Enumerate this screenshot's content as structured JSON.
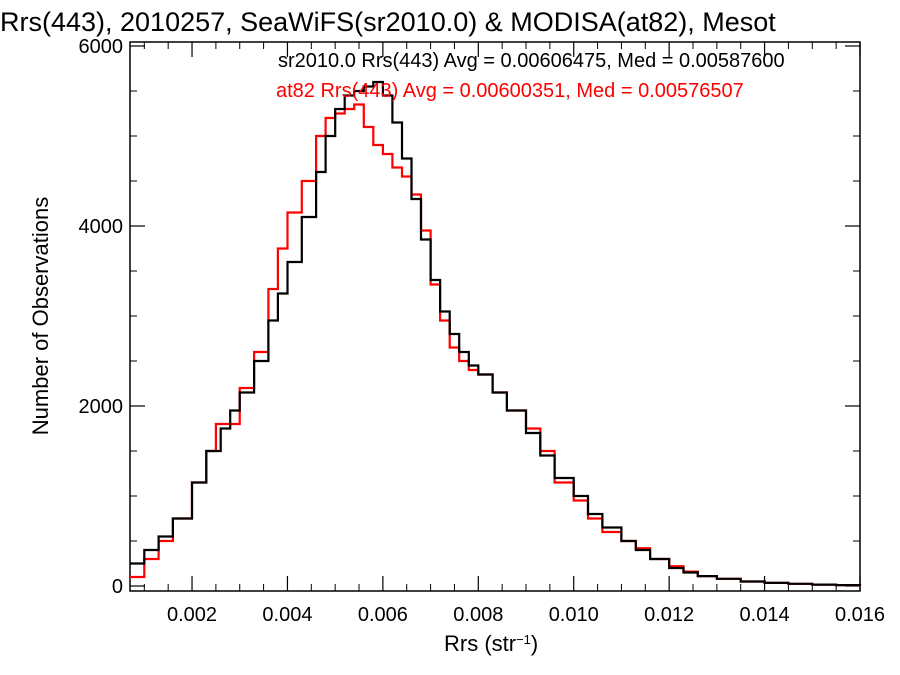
{
  "chart_data": {
    "type": "line",
    "title": "Rrs(443), 2010257, SeaWiFS(sr2010.0) & MODISA(at82), Mesot",
    "xlabel": "Rrs (str",
    "xlabel_sup": "−1",
    "xlabel_close": ")",
    "ylabel": "Number of Observations",
    "xlim": [
      0.0007,
      0.016
    ],
    "ylim": [
      0,
      6000
    ],
    "x_ticks": [
      0.002,
      0.004,
      0.006,
      0.008,
      0.01,
      0.012,
      0.014,
      0.016
    ],
    "x_tick_labels": [
      "0.002",
      "0.004",
      "0.006",
      "0.008",
      "0.010",
      "0.012",
      "0.014",
      "0.016"
    ],
    "y_ticks": [
      0,
      2000,
      4000,
      6000
    ],
    "y_tick_labels": [
      "0",
      "2000",
      "4000",
      "6000"
    ],
    "legend": [
      {
        "text": "sr2010.0 Rrs(443) Avg = 0.00606475, Med = 0.00587600",
        "color": "#000000"
      },
      {
        "text": "at82 Rrs(443) Avg = 0.00600351, Med = 0.00576507",
        "color": "#ff0000"
      }
    ],
    "legend_position": "top-right",
    "series": [
      {
        "color": "#000000",
        "x": [
          0.0007,
          0.001,
          0.0013,
          0.0016,
          0.002,
          0.0023,
          0.0026,
          0.0028,
          0.003,
          0.0033,
          0.0036,
          0.0038,
          0.004,
          0.0043,
          0.0046,
          0.0048,
          0.005,
          0.0052,
          0.0054,
          0.0056,
          0.0058,
          0.006,
          0.0062,
          0.0064,
          0.0066,
          0.0068,
          0.007,
          0.0072,
          0.0074,
          0.0076,
          0.0078,
          0.008,
          0.0083,
          0.0086,
          0.009,
          0.0093,
          0.0096,
          0.01,
          0.0103,
          0.0106,
          0.011,
          0.0113,
          0.0116,
          0.012,
          0.0123,
          0.0126,
          0.013,
          0.0135,
          0.014,
          0.0145,
          0.015,
          0.0155,
          0.016
        ],
        "y": [
          250,
          400,
          550,
          750,
          1150,
          1500,
          1750,
          1950,
          2150,
          2500,
          2950,
          3250,
          3600,
          4100,
          4600,
          5000,
          5300,
          5450,
          5500,
          5550,
          5600,
          5450,
          5150,
          4750,
          4300,
          3850,
          3400,
          3050,
          2800,
          2600,
          2450,
          2350,
          2150,
          1950,
          1700,
          1450,
          1200,
          1000,
          800,
          650,
          500,
          400,
          300,
          200,
          150,
          110,
          80,
          50,
          35,
          25,
          15,
          10,
          5
        ]
      },
      {
        "color": "#ff0000",
        "x": [
          0.0007,
          0.001,
          0.0013,
          0.0016,
          0.002,
          0.0023,
          0.0025,
          0.0027,
          0.003,
          0.0033,
          0.0036,
          0.0038,
          0.004,
          0.0043,
          0.0046,
          0.0048,
          0.005,
          0.0052,
          0.0054,
          0.0056,
          0.0058,
          0.006,
          0.0062,
          0.0064,
          0.0066,
          0.0068,
          0.007,
          0.0072,
          0.0074,
          0.0076,
          0.0078,
          0.008,
          0.0083,
          0.0086,
          0.009,
          0.0093,
          0.0096,
          0.01,
          0.0103,
          0.0106,
          0.011,
          0.0113,
          0.0116,
          0.012,
          0.0123,
          0.0126,
          0.013,
          0.0135,
          0.014,
          0.0145,
          0.015,
          0.0155,
          0.016
        ],
        "y": [
          100,
          300,
          500,
          750,
          1150,
          1500,
          1800,
          1800,
          2200,
          2600,
          3300,
          3750,
          4150,
          4500,
          5000,
          5200,
          5250,
          5300,
          5350,
          5100,
          4900,
          4800,
          4650,
          4550,
          4350,
          3950,
          3350,
          2950,
          2650,
          2500,
          2400,
          2350,
          2150,
          1950,
          1750,
          1500,
          1150,
          950,
          750,
          600,
          500,
          420,
          300,
          220,
          160,
          110,
          80,
          50,
          35,
          25,
          15,
          10,
          5
        ]
      }
    ]
  }
}
